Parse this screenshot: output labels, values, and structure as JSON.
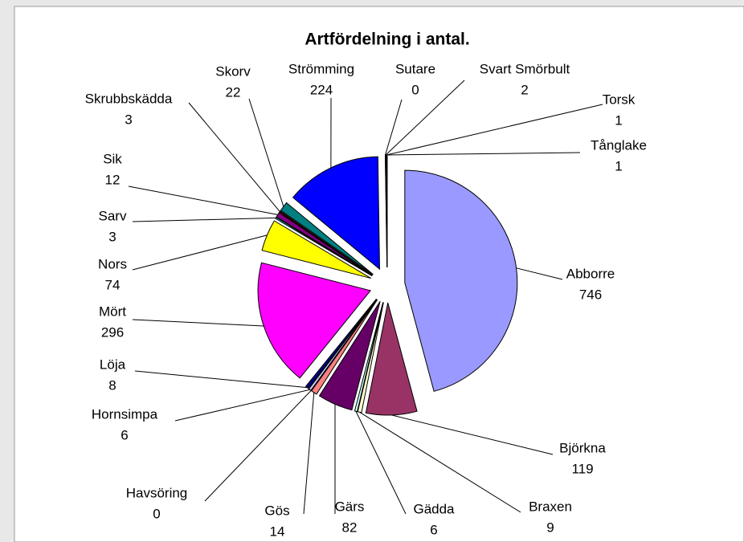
{
  "chart_data": {
    "type": "pie",
    "title": "Artfördelning i antal.",
    "categories": [
      "Abborre",
      "Björkna",
      "Braxen",
      "Gädda",
      "Gärs",
      "Gös",
      "Havsöring",
      "Hornsimpa",
      "Löja",
      "Mört",
      "Nors",
      "Sarv",
      "Sik",
      "Skrubbskädda",
      "Skorv",
      "Strömming",
      "Sutare",
      "Svart Smörbult",
      "Torsk",
      "Tånglake"
    ],
    "values": [
      746,
      119,
      9,
      6,
      82,
      14,
      0,
      6,
      8,
      296,
      74,
      3,
      12,
      3,
      22,
      224,
      0,
      2,
      1,
      1
    ],
    "colors": [
      "#9999ff",
      "#993366",
      "#ffffcc",
      "#ccffff",
      "#660066",
      "#ff8080",
      "#0066cc",
      "#ccccff",
      "#000080",
      "#ff00ff",
      "#ffff00",
      "#00ffff",
      "#800080",
      "#800000",
      "#008080",
      "#0000ff",
      "#00ccff",
      "#ccffff",
      "#ccffcc",
      "#ffff99"
    ]
  }
}
